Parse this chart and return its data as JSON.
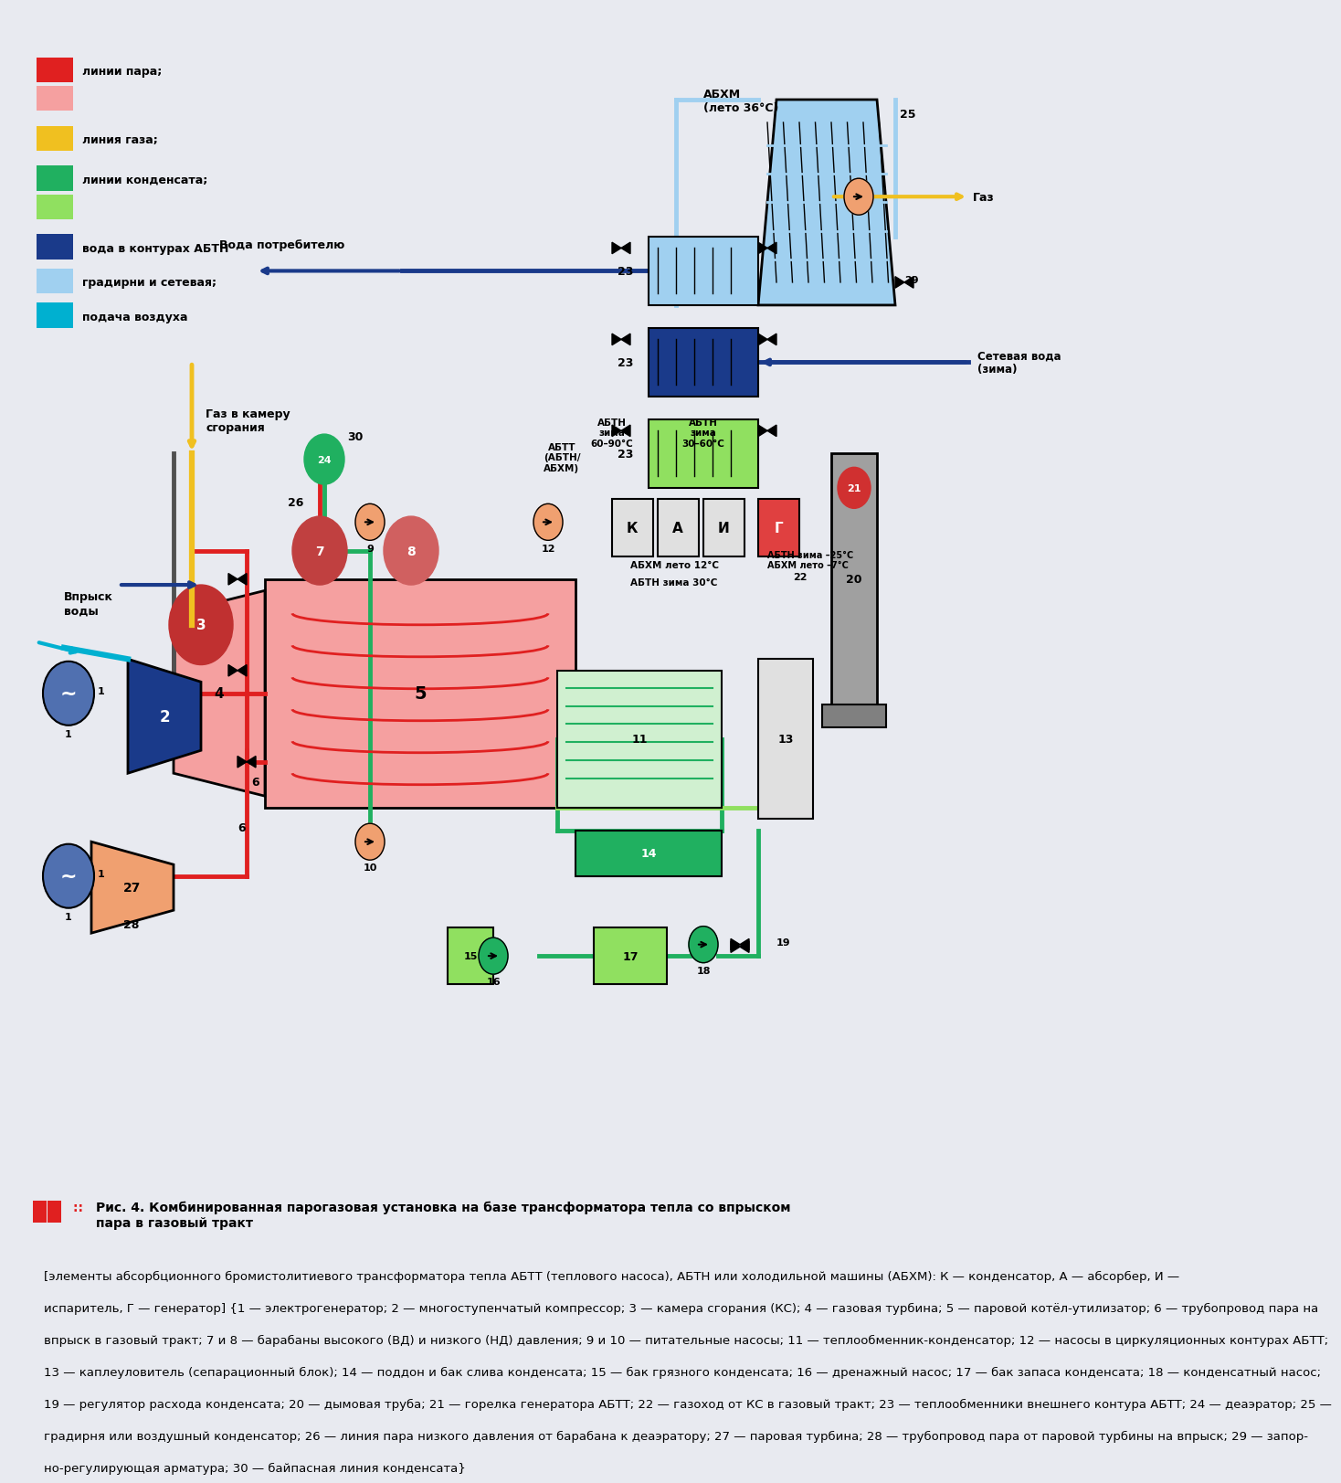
{
  "bg_color": "#e8eaf0",
  "title_text": "Комбинированная парогазовая установка на базе трансформатора тепла со впрыском пара в газовый тракт",
  "legend_items": [
    {
      "color": "#e02020",
      "label": "линии пара;"
    },
    {
      "color": "#f0a0a0",
      "label": ""
    },
    {
      "color": "#f0c020",
      "label": "линия газа;"
    },
    {
      "color": "#20b060",
      "label": "линии конденсата;"
    },
    {
      "color": "#90e060",
      "label": ""
    },
    {
      "color": "#1a3a8a",
      "label": "вода в контурах АБТН"
    },
    {
      "color": "#a0d0f0",
      "label": "градирни и сетевая;"
    },
    {
      "color": "#00b0d0",
      "label": "подача воздуха"
    }
  ],
  "caption_bold": "Рис. 4. Комбинированная парогазовая установка на базе трансформатора тепла со впрыском пара в газовый тракт",
  "caption_normal": "[элементы абсорбционного бромистолитиевого трансформатора тепла АБТТ (теплового насоса), АБТН или холодильной машины (АБХМ): К — конденсатор, А — абсорбер, И — испаритель, Г — генератор] {1 — электрогенератор; 2 — многоступенчатый компрессор; 3 — камера сгорания (КС); 4 — газовая турбина; 5 — паровой котёл-утилизатор; 6 — трубопровод пара на впрыск в газовый тракт; 7 и 8 — барабаны высокого (ВД) и низкого (НД) давления; 9 и 10 — питательные насосы; 11 — теплообменник-конденсатор; 12 — насосы в циркуляционных контурах АБТТ; 13 — каплеуловитель (сепарационный блок); 14 — поддон и бак слива конденсата; 15 — бак грязного конденсата; 16 — дренажный насос; 17 — бак запаса конденсата; 18 — конденсатный насос; 19 — регулятор расхода конденсата; 20 — дымовая труба; 21 — горелка генератора АБТТ; 22 — газоход от КС в газовый тракт; 23 — теплообменники внешнего контура АБТТ; 24 — деаэратор; 25 — градирня или воздушный конденсатор; 26 — линия пара низкого давления от барабана к деаэратору; 27 — паровая турбина; 28 — трубопровод пара от паровой турбины на впрыск; 29 — запорно-регулирующая арматура; 30 — байпасная линия конденсата}"
}
